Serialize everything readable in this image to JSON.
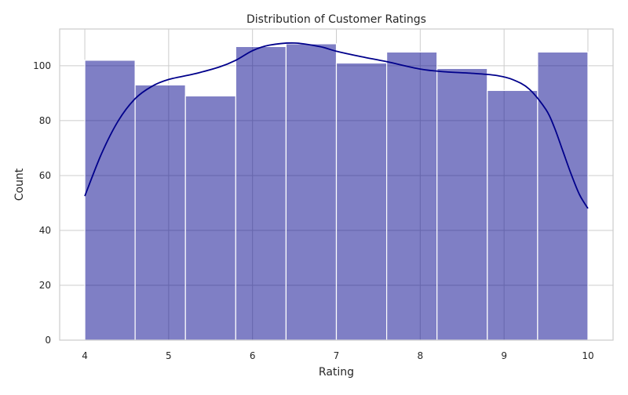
{
  "chart_data": {
    "type": "histogram",
    "title": "Distribution of Customer Ratings",
    "xlabel": "Rating",
    "ylabel": "Count",
    "xlim": [
      3.7,
      10.3
    ],
    "ylim": [
      0,
      113.4
    ],
    "xticks": [
      4,
      5,
      6,
      7,
      8,
      9,
      10
    ],
    "yticks": [
      0,
      20,
      40,
      60,
      80,
      100
    ],
    "bin_edges": [
      4.0,
      4.6,
      5.2,
      5.8,
      6.4,
      7.0,
      7.6,
      8.2,
      8.8,
      9.4,
      10.0
    ],
    "counts": [
      102,
      93,
      89,
      107,
      108,
      101,
      105,
      99,
      91,
      105
    ],
    "kde": {
      "x": [
        4.0,
        4.2,
        4.4,
        4.6,
        4.8,
        5.0,
        5.3,
        5.6,
        5.8,
        6.0,
        6.2,
        6.5,
        6.8,
        7.0,
        7.3,
        7.6,
        8.0,
        8.3,
        8.6,
        8.9,
        9.1,
        9.3,
        9.5,
        9.6,
        9.7,
        9.8,
        9.9,
        10.0
      ],
      "y": [
        52.5,
        68,
        80,
        88,
        92.5,
        95,
        97,
        99.5,
        102,
        105.5,
        107.5,
        108.3,
        107,
        105.3,
        103.3,
        101.5,
        98.8,
        97.8,
        97.3,
        96.5,
        95,
        91.5,
        84,
        77.5,
        69,
        60.5,
        53,
        48
      ]
    },
    "grid": true,
    "legend": "none"
  },
  "colors": {
    "bar_fill": "#00008b",
    "bar_fill_opacity": 0.5,
    "bar_edge": "#ffffff",
    "kde_line": "#00008b",
    "grid": "#cccccc",
    "frame": "#cccccc",
    "text": "#262626"
  }
}
